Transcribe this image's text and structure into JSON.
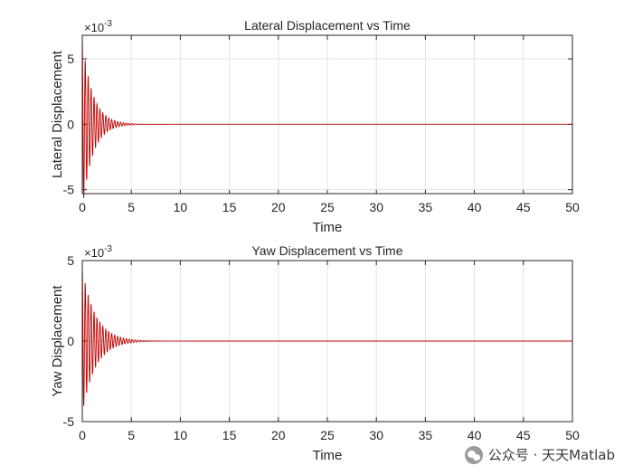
{
  "chart_data": [
    {
      "type": "line",
      "title": "Lateral Displacement vs Time",
      "xlabel": "Time",
      "ylabel": "Lateral Displacement",
      "xlim": [
        0,
        50
      ],
      "ylim": [
        -0.0053,
        0.0068
      ],
      "xticks": [
        "0",
        "5",
        "10",
        "15",
        "20",
        "25",
        "30",
        "35",
        "40",
        "45",
        "50"
      ],
      "yticks": [
        "-5",
        "0",
        "5"
      ],
      "y_exponent_base": "×10",
      "y_exponent_power": "-3",
      "grid": true,
      "line_color": "#c00000",
      "signal": {
        "initial_amplitude": 0.0065,
        "decay_rate": 0.95,
        "oscillation_period": 0.3,
        "duration": 50
      }
    },
    {
      "type": "line",
      "title": "Yaw Displacement vs Time",
      "xlabel": "Time",
      "ylabel": "Yaw Displacement",
      "xlim": [
        0,
        50
      ],
      "ylim": [
        -0.005,
        0.005
      ],
      "xticks": [
        "0",
        "5",
        "10",
        "15",
        "20",
        "25",
        "30",
        "35",
        "40",
        "45",
        "50"
      ],
      "yticks": [
        "-5",
        "0",
        "5"
      ],
      "y_exponent_base": "×10",
      "y_exponent_power": "-3",
      "grid": true,
      "line_color": "#c00000",
      "signal": {
        "initial_amplitude": 0.0045,
        "decay_rate": 0.75,
        "oscillation_period": 0.3,
        "duration": 50
      }
    }
  ],
  "watermark": {
    "icon": "wechat-icon",
    "text": "公众号 · 天天Matlab"
  }
}
